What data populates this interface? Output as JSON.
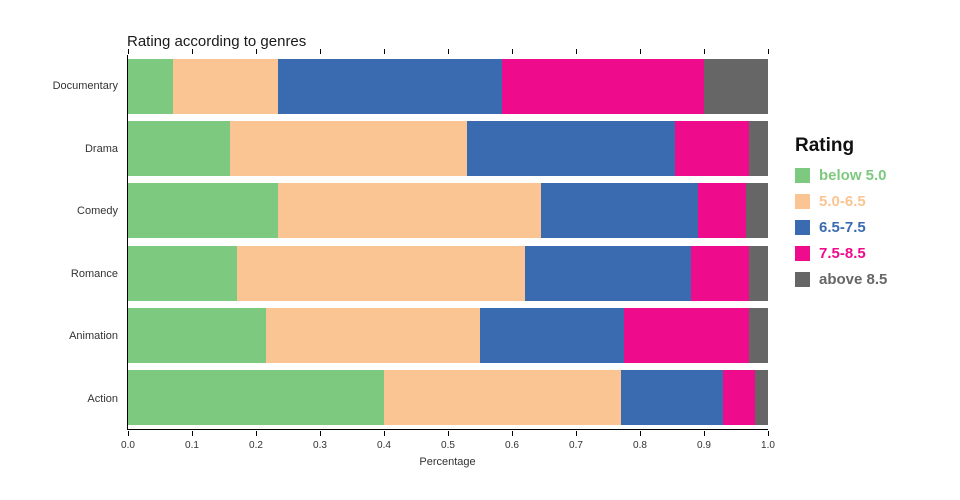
{
  "chart_data": {
    "type": "bar",
    "orientation": "horizontal",
    "stacked": true,
    "title": "Rating according to genres",
    "xlabel": "Percentage",
    "legend_title": "Rating",
    "legend_position": "right",
    "xlim": [
      0,
      1
    ],
    "grid": false,
    "categories": [
      "Documentary",
      "Drama",
      "Comedy",
      "Romance",
      "Animation",
      "Action"
    ],
    "xtick_labels": [
      "0.0",
      "0.1",
      "0.2",
      "0.3",
      "0.4",
      "0.5",
      "0.6",
      "0.7",
      "0.8",
      "0.9",
      "1.0"
    ],
    "series": [
      {
        "name": "below 5.0",
        "color": "#7dc97f",
        "values": [
          0.07,
          0.16,
          0.235,
          0.17,
          0.215,
          0.4
        ]
      },
      {
        "name": "5.0-6.5",
        "color": "#fac593",
        "values": [
          0.165,
          0.37,
          0.41,
          0.45,
          0.335,
          0.37
        ]
      },
      {
        "name": "6.5-7.5",
        "color": "#3a6bb0",
        "values": [
          0.35,
          0.325,
          0.245,
          0.26,
          0.225,
          0.16
        ]
      },
      {
        "name": "7.5-8.5",
        "color": "#ee0c8d",
        "values": [
          0.315,
          0.115,
          0.075,
          0.09,
          0.195,
          0.05
        ]
      },
      {
        "name": "above 8.5",
        "color": "#666666",
        "values": [
          0.1,
          0.03,
          0.035,
          0.03,
          0.03,
          0.02
        ]
      }
    ]
  }
}
